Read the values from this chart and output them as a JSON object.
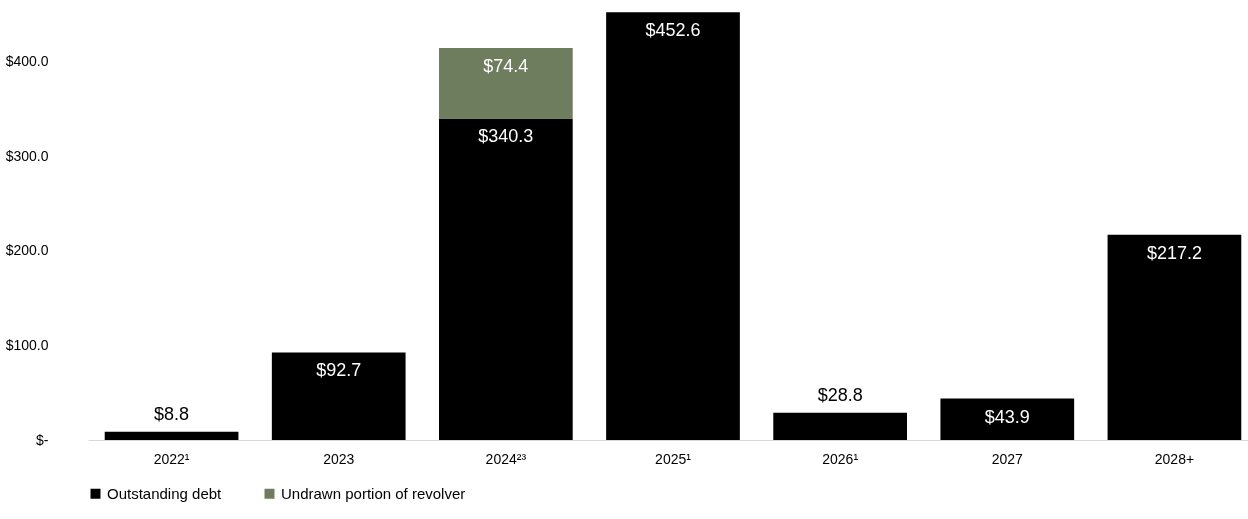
{
  "chart_data": {
    "type": "bar",
    "stacked": true,
    "categories": [
      "2022¹",
      "2023",
      "2024²³",
      "2025¹",
      "2026¹",
      "2027",
      "2028+"
    ],
    "series": [
      {
        "name": "Outstanding debt",
        "color": "#000000",
        "values": [
          8.8,
          92.7,
          340.3,
          452.6,
          28.8,
          43.9,
          217.2
        ],
        "value_labels": [
          "$8.8",
          "$92.7",
          "$340.3",
          "$452.6",
          "$28.8",
          "$43.9",
          "$217.2"
        ]
      },
      {
        "name": "Undrawn portion of revolver",
        "color": "#6e7d5e",
        "values": [
          null,
          null,
          74.4,
          null,
          null,
          null,
          null
        ],
        "value_labels": [
          null,
          null,
          "$74.4",
          null,
          null,
          null,
          null
        ]
      }
    ],
    "ylim": [
      0,
      455
    ],
    "yticks": [
      {
        "value": 0,
        "label": "$-"
      },
      {
        "value": 100,
        "label": "$100.0"
      },
      {
        "value": 200,
        "label": "$200.0"
      },
      {
        "value": 300,
        "label": "$300.0"
      },
      {
        "value": 400,
        "label": "$400.0"
      }
    ],
    "grid": false,
    "legend": "bottom"
  }
}
